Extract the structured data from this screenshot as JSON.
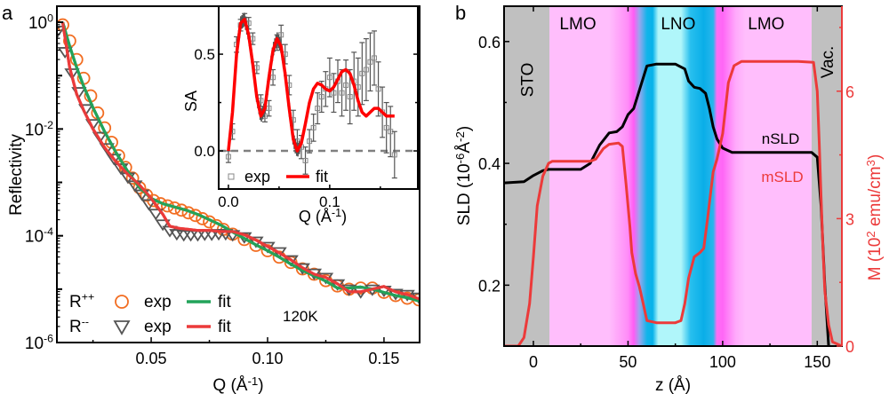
{
  "chart_data": [
    {
      "panel_label": "a",
      "type": "scatter",
      "title": "",
      "xlabel": "Q (Å⁻¹)",
      "ylabel": "Reflectivity",
      "xlim": [
        0.0095,
        0.1653
      ],
      "ylim_log10": [
        -6,
        0.3
      ],
      "yscale": "log",
      "xticks": [
        0.05,
        0.1,
        0.15
      ],
      "xtick_labels": [
        "0.05",
        "0.10",
        "0.15"
      ],
      "yticks_log10": [
        0,
        -2,
        -4,
        -6
      ],
      "ytick_labels": [
        {
          "base": "10",
          "exp": "0"
        },
        {
          "base": "10",
          "exp": "-2"
        },
        {
          "base": "10",
          "exp": "-4"
        },
        {
          "base": "10",
          "exp": "-6"
        }
      ],
      "annotation": "120K",
      "legend": {
        "placement": "bottom-left",
        "rows": [
          {
            "label": "R",
            "sup": "++",
            "marker_label": "exp",
            "line_label": "fit",
            "marker_color": "#f26d21",
            "line_color": "#22a35a"
          },
          {
            "label": "R",
            "sup": "--",
            "marker_label": "exp",
            "line_label": "fit",
            "marker_color": "#555555",
            "line_color": "#ec3a3a"
          }
        ]
      },
      "series": [
        {
          "name": "R++ exp",
          "kind": "marker",
          "marker": "circle",
          "color": "#f26d21",
          "x": [
            0.012,
            0.015,
            0.018,
            0.021,
            0.024,
            0.027,
            0.03,
            0.033,
            0.036,
            0.039,
            0.042,
            0.045,
            0.048,
            0.051,
            0.054,
            0.057,
            0.06,
            0.063,
            0.066,
            0.069,
            0.072,
            0.075,
            0.078,
            0.081,
            0.085,
            0.09,
            0.095,
            0.1,
            0.105,
            0.11,
            0.115,
            0.12,
            0.125,
            0.13,
            0.135,
            0.14,
            0.145,
            0.15,
            0.155,
            0.16,
            0.165
          ],
          "log10y": [
            -0.05,
            -0.35,
            -0.7,
            -1.05,
            -1.38,
            -1.7,
            -1.98,
            -2.25,
            -2.5,
            -2.72,
            -2.92,
            -3.1,
            -3.24,
            -3.34,
            -3.4,
            -3.44,
            -3.48,
            -3.52,
            -3.57,
            -3.62,
            -3.68,
            -3.74,
            -3.81,
            -3.88,
            -3.97,
            -4.07,
            -4.18,
            -4.28,
            -4.4,
            -4.5,
            -4.62,
            -4.72,
            -4.84,
            -4.94,
            -5.0,
            -4.98,
            -4.98,
            -5.06,
            -5.12,
            -5.17,
            -5.2
          ]
        },
        {
          "name": "R++ fit",
          "kind": "line",
          "color": "#22a35a",
          "x": [
            0.012,
            0.015,
            0.018,
            0.021,
            0.025,
            0.03,
            0.035,
            0.04,
            0.045,
            0.05,
            0.055,
            0.06,
            0.065,
            0.07,
            0.075,
            0.08,
            0.085,
            0.09,
            0.095,
            0.1,
            0.105,
            0.11,
            0.115,
            0.12,
            0.125,
            0.13,
            0.135,
            0.14,
            0.145,
            0.15,
            0.155,
            0.16,
            0.165
          ],
          "log10y": [
            0.0,
            -0.45,
            -0.85,
            -1.2,
            -1.6,
            -2.05,
            -2.45,
            -2.8,
            -3.1,
            -3.3,
            -3.4,
            -3.46,
            -3.52,
            -3.6,
            -3.7,
            -3.8,
            -3.93,
            -4.05,
            -4.17,
            -4.28,
            -4.4,
            -4.53,
            -4.65,
            -4.75,
            -4.85,
            -4.98,
            -4.98,
            -4.96,
            -5.0,
            -5.06,
            -5.12,
            -5.16,
            -5.22
          ]
        },
        {
          "name": "R-- exp",
          "kind": "marker",
          "marker": "triangle-down",
          "color": "#555555",
          "x": [
            0.01,
            0.013,
            0.016,
            0.019,
            0.022,
            0.025,
            0.028,
            0.031,
            0.034,
            0.037,
            0.04,
            0.043,
            0.046,
            0.049,
            0.052,
            0.055,
            0.058,
            0.061,
            0.064,
            0.067,
            0.07,
            0.073,
            0.076,
            0.079,
            0.082,
            0.085,
            0.09,
            0.095,
            0.1,
            0.105,
            0.11,
            0.115,
            0.12,
            0.125,
            0.13,
            0.135,
            0.14,
            0.145,
            0.15,
            0.155,
            0.16,
            0.165
          ],
          "log10y": [
            -0.15,
            -0.55,
            -0.95,
            -1.3,
            -1.62,
            -1.9,
            -2.14,
            -2.35,
            -2.55,
            -2.73,
            -2.9,
            -3.05,
            -3.22,
            -3.4,
            -3.58,
            -3.78,
            -3.9,
            -3.96,
            -3.98,
            -3.98,
            -3.98,
            -3.97,
            -3.97,
            -3.96,
            -3.96,
            -3.98,
            -4.02,
            -4.1,
            -4.2,
            -4.3,
            -4.45,
            -4.6,
            -4.7,
            -4.78,
            -4.9,
            -5.0,
            -5.05,
            -5.0,
            -5.02,
            -5.08,
            -5.1,
            -5.15
          ]
        },
        {
          "name": "R-- fit",
          "kind": "line",
          "color": "#ec3a3a",
          "x": [
            0.012,
            0.015,
            0.018,
            0.021,
            0.025,
            0.03,
            0.035,
            0.04,
            0.045,
            0.05,
            0.055,
            0.058,
            0.062,
            0.066,
            0.07,
            0.075,
            0.08,
            0.085,
            0.09,
            0.095,
            0.1,
            0.105,
            0.11,
            0.115,
            0.12,
            0.125,
            0.13,
            0.135,
            0.14,
            0.145,
            0.15,
            0.155,
            0.16,
            0.165
          ],
          "log10y": [
            0.0,
            -0.85,
            -1.35,
            -1.65,
            -2.0,
            -2.35,
            -2.62,
            -2.85,
            -3.05,
            -3.3,
            -3.6,
            -3.82,
            -3.86,
            -3.88,
            -3.9,
            -3.9,
            -3.92,
            -3.92,
            -3.98,
            -4.08,
            -4.2,
            -4.32,
            -4.45,
            -4.6,
            -4.72,
            -4.78,
            -4.9,
            -5.05,
            -5.05,
            -5.0,
            -4.95,
            -5.05,
            -5.1,
            -5.18
          ]
        }
      ]
    },
    {
      "panel_label": "",
      "type": "scatter",
      "inset_of": "a",
      "title": "",
      "xlabel": "Q (Å⁻¹)",
      "ylabel": "SA",
      "xlim": [
        -0.0096,
        0.187
      ],
      "ylim": [
        -0.197,
        0.748
      ],
      "xticks": [
        0.0,
        0.1
      ],
      "xtick_labels": [
        "0.0",
        "0.1"
      ],
      "yticks": [
        0.0,
        0.5
      ],
      "ytick_labels": [
        "0.0",
        "0.5"
      ],
      "reference_line": {
        "y": 0.0,
        "style": "dashed",
        "color": "#808080"
      },
      "legend": {
        "placement": "bottom-left",
        "items": [
          {
            "label": "exp",
            "marker": "square",
            "color": "#888888"
          },
          {
            "label": "fit",
            "line": true,
            "color": "#ff0000"
          }
        ]
      },
      "series": [
        {
          "name": "exp",
          "kind": "errorbar",
          "color": "#555555",
          "x": [
            0.0,
            0.004,
            0.008,
            0.012,
            0.016,
            0.02,
            0.024,
            0.028,
            0.032,
            0.036,
            0.04,
            0.044,
            0.048,
            0.052,
            0.056,
            0.06,
            0.064,
            0.068,
            0.072,
            0.076,
            0.08,
            0.084,
            0.088,
            0.092,
            0.096,
            0.1,
            0.104,
            0.108,
            0.112,
            0.116,
            0.12,
            0.124,
            0.128,
            0.132,
            0.136,
            0.14,
            0.144,
            0.148,
            0.152,
            0.156,
            0.16,
            0.164
          ],
          "y": [
            -0.03,
            0.1,
            0.55,
            0.65,
            0.68,
            0.66,
            0.58,
            0.43,
            0.26,
            0.18,
            0.22,
            0.38,
            0.56,
            0.6,
            0.5,
            0.34,
            0.16,
            0.05,
            0.02,
            -0.05,
            0.05,
            0.12,
            0.22,
            0.28,
            0.32,
            0.38,
            0.3,
            0.36,
            0.3,
            0.34,
            0.28,
            0.36,
            0.33,
            0.4,
            0.42,
            0.46,
            0.48,
            0.32,
            0.2,
            0.12,
            0.1,
            -0.02
          ],
          "err": [
            0.03,
            0.04,
            0.04,
            0.03,
            0.03,
            0.03,
            0.03,
            0.03,
            0.03,
            0.03,
            0.04,
            0.04,
            0.04,
            0.05,
            0.05,
            0.05,
            0.05,
            0.06,
            0.06,
            0.07,
            0.06,
            0.07,
            0.08,
            0.08,
            0.09,
            0.1,
            0.1,
            0.11,
            0.12,
            0.13,
            0.14,
            0.15,
            0.15,
            0.16,
            0.16,
            0.15,
            0.14,
            0.14,
            0.13,
            0.13,
            0.13,
            0.12
          ]
        },
        {
          "name": "fit",
          "kind": "line",
          "color": "#ff0000",
          "x": [
            0.0,
            0.004,
            0.008,
            0.012,
            0.016,
            0.02,
            0.024,
            0.028,
            0.032,
            0.036,
            0.04,
            0.044,
            0.048,
            0.052,
            0.056,
            0.06,
            0.064,
            0.068,
            0.072,
            0.076,
            0.08,
            0.084,
            0.088,
            0.092,
            0.096,
            0.1,
            0.104,
            0.108,
            0.112,
            0.116,
            0.12,
            0.124,
            0.128,
            0.132,
            0.136,
            0.14,
            0.144,
            0.148,
            0.152,
            0.156,
            0.16,
            0.164
          ],
          "y": [
            0.0,
            0.2,
            0.5,
            0.66,
            0.68,
            0.6,
            0.45,
            0.28,
            0.18,
            0.22,
            0.38,
            0.52,
            0.58,
            0.54,
            0.4,
            0.22,
            0.06,
            0.0,
            0.04,
            0.14,
            0.25,
            0.32,
            0.35,
            0.34,
            0.32,
            0.31,
            0.33,
            0.37,
            0.41,
            0.42,
            0.4,
            0.34,
            0.26,
            0.2,
            0.18,
            0.2,
            0.22,
            0.22,
            0.2,
            0.18,
            0.18,
            0.18
          ]
        }
      ]
    },
    {
      "panel_label": "b",
      "type": "line",
      "title": "",
      "xlabel": "z (Å)",
      "ylabel": "SLD (10⁻⁶Å⁻²)",
      "ylabel_right": "M (10² emu/cm³)",
      "xlim": [
        -15.5,
        163
      ],
      "ylim": [
        0.1,
        0.658
      ],
      "ylim_right": [
        0,
        8
      ],
      "xticks": [
        0,
        50,
        100,
        150
      ],
      "xtick_labels": [
        "0",
        "50",
        "100",
        "150"
      ],
      "yticks": [
        0.2,
        0.4,
        0.6
      ],
      "ytick_labels": [
        "0.2",
        "0.4",
        "0.6"
      ],
      "yticks_right": [
        0,
        3,
        6
      ],
      "ytick_labels_right": [
        "0",
        "3",
        "6"
      ],
      "right_axis_color": "#ec3a3a",
      "regions": [
        {
          "label": "STO",
          "from": -15.5,
          "to": 8.5,
          "color": "#c0c0c0",
          "label_orientation": "vertical"
        },
        {
          "label": "LMO",
          "from": 8.5,
          "to": 55,
          "color": "#ffbefc",
          "label_orientation": "horizontal"
        },
        {
          "label": "LNO",
          "from": 55,
          "to": 97,
          "color": "#b0f6fa",
          "label_orientation": "horizontal"
        },
        {
          "label": "LMO",
          "from": 97,
          "to": 147,
          "color": "#ffbefc",
          "label_orientation": "horizontal"
        },
        {
          "label": "Vac.",
          "from": 147,
          "to": 163,
          "color": "#c0c0c0",
          "label_orientation": "vertical"
        }
      ],
      "series": [
        {
          "name": "nSLD",
          "axis": "left",
          "color": "#000000",
          "z": [
            -15.5,
            -5,
            0,
            5,
            8,
            15,
            25,
            30,
            35,
            40,
            44,
            47,
            50,
            53,
            55,
            57,
            60,
            65,
            75,
            80,
            82,
            85,
            88,
            91,
            93,
            95,
            97,
            100,
            105,
            110,
            120,
            140,
            147,
            150,
            152,
            154,
            156,
            158,
            163
          ],
          "y": [
            0.368,
            0.37,
            0.38,
            0.388,
            0.39,
            0.39,
            0.39,
            0.4,
            0.43,
            0.45,
            0.452,
            0.46,
            0.48,
            0.49,
            0.51,
            0.53,
            0.56,
            0.563,
            0.563,
            0.555,
            0.535,
            0.525,
            0.523,
            0.515,
            0.49,
            0.46,
            0.44,
            0.425,
            0.418,
            0.418,
            0.418,
            0.418,
            0.418,
            0.41,
            0.33,
            0.2,
            0.1,
            0.05,
            0.05
          ]
        },
        {
          "name": "mSLD",
          "axis": "right",
          "color": "#ec3a3a",
          "z": [
            -15.5,
            -8,
            -5,
            -2,
            0,
            2,
            5,
            8,
            10,
            20,
            30,
            33,
            37,
            40,
            45,
            47,
            49,
            51,
            52,
            54,
            56,
            58,
            60,
            65,
            70,
            75,
            78,
            80,
            82,
            85,
            88,
            90,
            92,
            95,
            97,
            100,
            103,
            106,
            110,
            120,
            140,
            148,
            150,
            151,
            152,
            153,
            154,
            156,
            158,
            163
          ],
          "y": [
            0.0,
            0.0,
            0.2,
            1.0,
            2.1,
            3.3,
            4.0,
            4.3,
            4.35,
            4.35,
            4.35,
            4.4,
            4.65,
            4.75,
            4.78,
            4.7,
            3.8,
            2.8,
            2.2,
            1.7,
            1.4,
            1.0,
            0.6,
            0.55,
            0.55,
            0.55,
            0.6,
            1.0,
            1.6,
            2.1,
            2.2,
            2.3,
            3.0,
            4.1,
            4.4,
            5.0,
            6.2,
            6.6,
            6.7,
            6.7,
            6.7,
            6.68,
            6.0,
            4.8,
            3.5,
            2.3,
            1.3,
            0.5,
            0.1,
            0.0
          ]
        }
      ],
      "line_labels": [
        {
          "text": "nSLD",
          "color": "#000000"
        },
        {
          "text": "mSLD",
          "color": "#ec3a3a"
        }
      ]
    }
  ]
}
